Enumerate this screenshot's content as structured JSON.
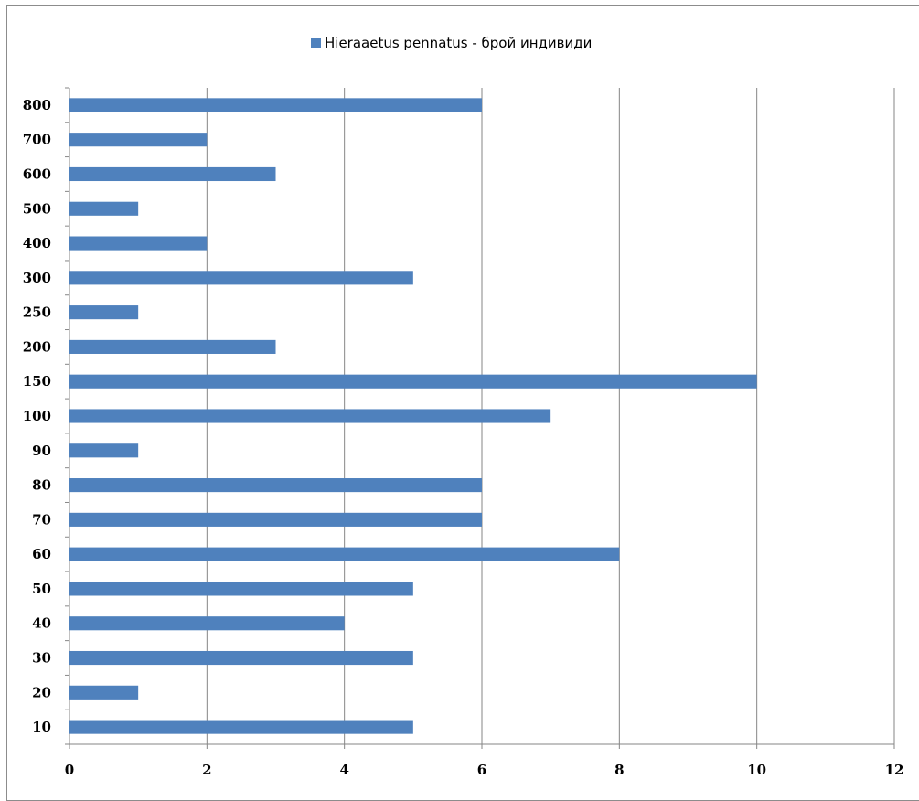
{
  "chart_data": {
    "type": "bar",
    "orientation": "horizontal",
    "categories": [
      "10",
      "20",
      "30",
      "40",
      "50",
      "60",
      "70",
      "80",
      "90",
      "100",
      "150",
      "200",
      "250",
      "300",
      "400",
      "500",
      "600",
      "700",
      "800"
    ],
    "series": [
      {
        "name": "Hieraaetus pennatus - брой индивиди",
        "values": [
          5,
          1,
          5,
          4,
          5,
          8,
          6,
          6,
          1,
          7,
          10,
          3,
          1,
          5,
          2,
          1,
          3,
          2,
          6
        ]
      }
    ],
    "xlim": [
      0,
      12
    ],
    "x_ticks": [
      "0",
      "2",
      "4",
      "6",
      "8",
      "10",
      "12"
    ],
    "grid": "vertical",
    "legend_position": "top",
    "bar_color": "#4F81BD",
    "grid_color": "#868686",
    "axis_color": "#868686"
  }
}
